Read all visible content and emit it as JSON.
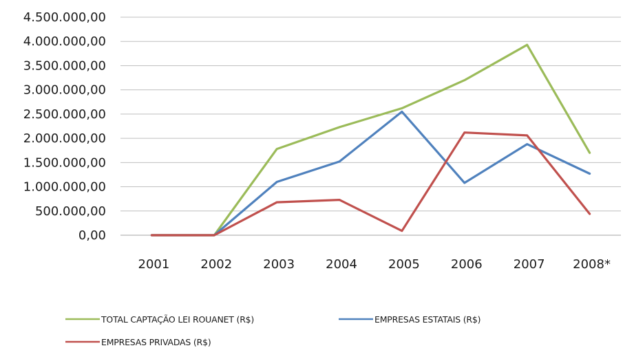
{
  "chart_data": {
    "type": "line",
    "categories": [
      "2001",
      "2002",
      "2003",
      "2004",
      "2005",
      "2006",
      "2007",
      "2008*"
    ],
    "y_tick_labels": [
      "0,00",
      "500.000,00",
      "1.000.000,00",
      "1.500.000,00",
      "2.000.000,00",
      "2.500.000,00",
      "3.000.000,00",
      "3.500.000,00",
      "4.000.000,00",
      "4.500.000,00"
    ],
    "ylim": [
      0,
      4500000
    ],
    "grid": true,
    "legend_position": "bottom",
    "series": [
      {
        "name": "TOTAL CAPTAÇÃO LEI ROUANET (R$)",
        "color": "#9bbb59",
        "values": [
          0,
          0,
          1780000,
          2230000,
          2620000,
          3200000,
          3930000,
          1700000
        ]
      },
      {
        "name": "EMPRESAS ESTATAIS (R$)",
        "color": "#4f81bd",
        "values": [
          0,
          0,
          1100000,
          1520000,
          2550000,
          1080000,
          1880000,
          1270000
        ]
      },
      {
        "name": "EMPRESAS PRIVADAS (R$)",
        "color": "#c0504d",
        "values": [
          0,
          0,
          680000,
          730000,
          90000,
          2120000,
          2060000,
          440000
        ]
      }
    ]
  }
}
